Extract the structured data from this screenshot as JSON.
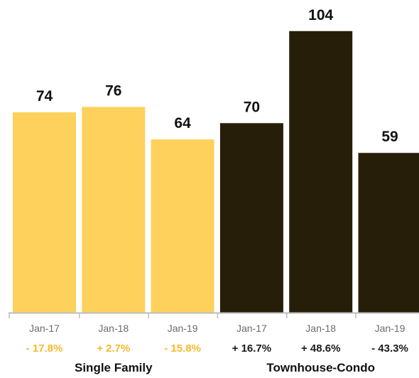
{
  "colors": {
    "single_family": "#FDD15B",
    "townhouse_condo": "#271E0A",
    "single_family_change_text": "#F7B92B",
    "townhouse_condo_change_text": "#1B1B1B",
    "axis": "#BDBDBD"
  },
  "chart_data": {
    "type": "bar",
    "ylim": [
      0,
      110
    ],
    "grid": false,
    "groups": [
      {
        "name": "Single Family",
        "categories": [
          "Jan-17",
          "Jan-18",
          "Jan-19"
        ],
        "values": [
          74,
          76,
          64
        ],
        "changes": [
          "- 17.8%",
          "+ 2.7%",
          "- 15.8%"
        ]
      },
      {
        "name": "Townhouse-Condo",
        "categories": [
          "Jan-17",
          "Jan-18",
          "Jan-19"
        ],
        "values": [
          70,
          104,
          59
        ],
        "changes": [
          "+ 16.7%",
          "+ 48.6%",
          "- 43.3%"
        ]
      }
    ]
  }
}
